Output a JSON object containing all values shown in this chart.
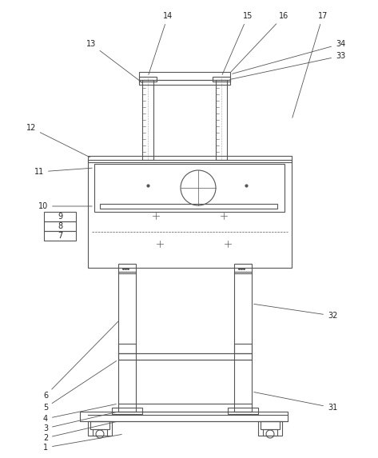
{
  "bg_color": "#ffffff",
  "line_color": "#555555",
  "label_color": "#222222",
  "fig_width": 4.73,
  "fig_height": 5.73,
  "dpi": 100
}
